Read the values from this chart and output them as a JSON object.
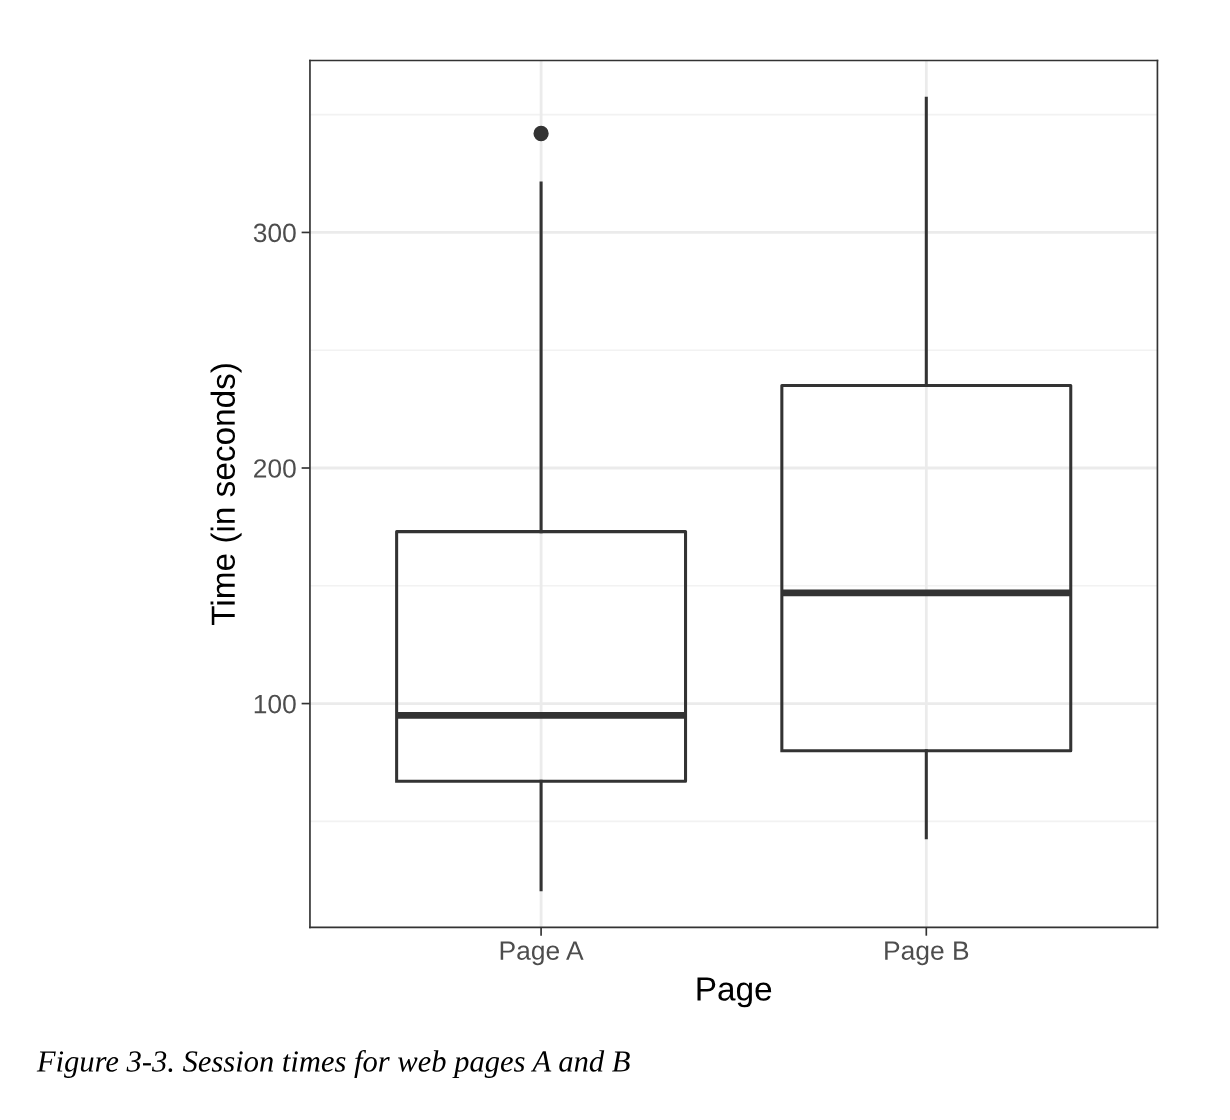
{
  "chart_data": {
    "type": "box",
    "categories": [
      "Page A",
      "Page B"
    ],
    "boxes": [
      {
        "low": 21,
        "q1": 67,
        "median": 95,
        "q3": 173,
        "high": 321,
        "outliers": [
          342
        ]
      },
      {
        "low": 43,
        "q1": 80,
        "median": 147,
        "q3": 235,
        "high": 357
      }
    ],
    "xlabel": "Page",
    "ylabel": "Time (in seconds)",
    "ylim": [
      5,
      373
    ],
    "yticks": [
      100,
      200,
      300
    ],
    "grid": true,
    "color": "#333333",
    "annotations": [
      "Figure 3-3. Session times for web pages A and B"
    ]
  }
}
